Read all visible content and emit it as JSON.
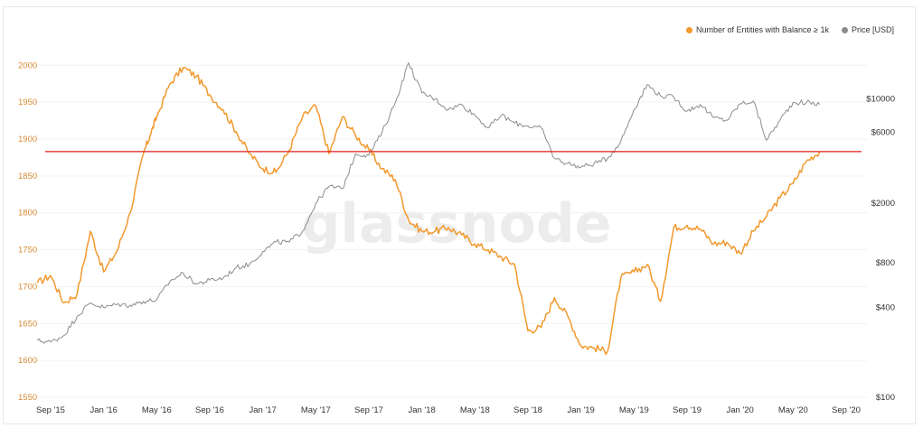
{
  "colors": {
    "entities": "#f2992e",
    "price": "#8c8c8c",
    "threshold": "#e01b1b",
    "left_axis_text": "#d98a35",
    "right_axis_text": "#333333",
    "watermark": "#e6e6e6"
  },
  "watermark": "glassnode",
  "legend": [
    {
      "label": "Number of Entities with Balance ≥ 1k",
      "color": "#f2992e"
    },
    {
      "label": "Price [USD]",
      "color": "#8c8c8c"
    }
  ],
  "chart_data": {
    "type": "line",
    "x_ticks": [
      "Sep '15",
      "Jan '16",
      "May '16",
      "Sep '16",
      "Jan '17",
      "May '17",
      "Sep '17",
      "Jan '18",
      "May '18",
      "Sep '18",
      "Jan '19",
      "May '19",
      "Sep '19",
      "Jan '20",
      "May '20",
      "Sep '20"
    ],
    "left_axis": {
      "ticks": [
        2000,
        1950,
        1900,
        1850,
        1800,
        1750,
        1700,
        1650,
        1600,
        1550
      ],
      "ylim": [
        1550,
        2015
      ]
    },
    "right_axis": {
      "scale": "log",
      "ticks": [
        "$10000",
        "$6000",
        "$2000",
        "$800",
        "$400",
        "$100"
      ],
      "ylim": [
        100,
        20000
      ]
    },
    "threshold_value": 1883,
    "series": [
      {
        "name": "Number of Entities with Balance ≥ 1k",
        "axis": "left",
        "points": [
          [
            "Aug '15",
            1705
          ],
          [
            "Sep '15",
            1715
          ],
          [
            "Oct '15",
            1678
          ],
          [
            "Nov '15",
            1690
          ],
          [
            "Dec '15",
            1775
          ],
          [
            "Jan '16",
            1720
          ],
          [
            "Feb '16",
            1748
          ],
          [
            "Mar '16",
            1800
          ],
          [
            "Apr '16",
            1880
          ],
          [
            "Apr '16",
            1905
          ],
          [
            "May '16",
            1930
          ],
          [
            "Jun '16",
            1975
          ],
          [
            "Jul '16",
            1997
          ],
          [
            "Aug '16",
            1985
          ],
          [
            "Sep '16",
            1960
          ],
          [
            "Oct '16",
            1940
          ],
          [
            "Nov '16",
            1910
          ],
          [
            "Dec '16",
            1880
          ],
          [
            "Jan '17",
            1860
          ],
          [
            "Feb '17",
            1855
          ],
          [
            "Mar '17",
            1885
          ],
          [
            "Apr '17",
            1930
          ],
          [
            "May '17",
            1945
          ],
          [
            "Jun '17",
            1880
          ],
          [
            "Jul '17",
            1930
          ],
          [
            "Aug '17",
            1905
          ],
          [
            "Sep '17",
            1885
          ],
          [
            "Oct '17",
            1860
          ],
          [
            "Nov '17",
            1845
          ],
          [
            "Dec '17",
            1790
          ],
          [
            "Jan '18",
            1775
          ],
          [
            "Feb '18",
            1775
          ],
          [
            "Mar '18",
            1780
          ],
          [
            "Apr '18",
            1770
          ],
          [
            "May '18",
            1758
          ],
          [
            "Jun '18",
            1750
          ],
          [
            "Jul '18",
            1740
          ],
          [
            "Aug '18",
            1730
          ],
          [
            "Sep '18",
            1640
          ],
          [
            "Oct '18",
            1645
          ],
          [
            "Nov '18",
            1685
          ],
          [
            "Dec '18",
            1660
          ],
          [
            "Jan '19",
            1620
          ],
          [
            "Feb '19",
            1617
          ],
          [
            "Mar '19",
            1612
          ],
          [
            "Apr '19",
            1712
          ],
          [
            "May '19",
            1720
          ],
          [
            "Jun '19",
            1730
          ],
          [
            "Jul '19",
            1680
          ],
          [
            "Aug '19",
            1780
          ],
          [
            "Sep '19",
            1783
          ],
          [
            "Oct '19",
            1778
          ],
          [
            "Nov '19",
            1758
          ],
          [
            "Dec '19",
            1760
          ],
          [
            "Jan '20",
            1745
          ],
          [
            "Feb '20",
            1775
          ],
          [
            "Mar '20",
            1795
          ],
          [
            "Apr '20",
            1820
          ],
          [
            "May '20",
            1840
          ],
          [
            "Jun '20",
            1870
          ],
          [
            "Jul '20",
            1883
          ]
        ]
      },
      {
        "name": "Price [USD]",
        "axis": "right",
        "points": [
          [
            "Aug '15",
            240
          ],
          [
            "Sep '15",
            235
          ],
          [
            "Oct '15",
            260
          ],
          [
            "Nov '15",
            350
          ],
          [
            "Dec '15",
            430
          ],
          [
            "Jan '16",
            400
          ],
          [
            "Feb '16",
            420
          ],
          [
            "Mar '16",
            415
          ],
          [
            "Apr '16",
            440
          ],
          [
            "May '16",
            450
          ],
          [
            "Jun '16",
            600
          ],
          [
            "Jul '16",
            680
          ],
          [
            "Aug '16",
            575
          ],
          [
            "Sep '16",
            610
          ],
          [
            "Oct '16",
            630
          ],
          [
            "Nov '16",
            740
          ],
          [
            "Dec '16",
            780
          ],
          [
            "Jan '17",
            950
          ],
          [
            "Feb '17",
            1100
          ],
          [
            "Mar '17",
            1100
          ],
          [
            "Apr '17",
            1300
          ],
          [
            "May '17",
            2000
          ],
          [
            "Jun '17",
            2600
          ],
          [
            "Jul '17",
            2500
          ],
          [
            "Aug '17",
            4300
          ],
          [
            "Sep '17",
            4200
          ],
          [
            "Oct '17",
            6000
          ],
          [
            "Nov '17",
            9500
          ],
          [
            "Dec '17",
            17500
          ],
          [
            "Jan '18",
            11000
          ],
          [
            "Feb '18",
            10000
          ],
          [
            "Mar '18",
            8500
          ],
          [
            "Apr '18",
            9200
          ],
          [
            "May '18",
            7800
          ],
          [
            "Jun '18",
            6400
          ],
          [
            "Jul '18",
            7800
          ],
          [
            "Aug '18",
            6900
          ],
          [
            "Sep '18",
            6600
          ],
          [
            "Oct '18",
            6400
          ],
          [
            "Nov '18",
            4000
          ],
          [
            "Dec '18",
            3700
          ],
          [
            "Jan '19",
            3500
          ],
          [
            "Feb '19",
            3700
          ],
          [
            "Mar '19",
            4000
          ],
          [
            "Apr '19",
            5200
          ],
          [
            "May '19",
            8500
          ],
          [
            "Jun '19",
            12500
          ],
          [
            "Jul '19",
            10500
          ],
          [
            "Aug '19",
            10300
          ],
          [
            "Sep '19",
            8300
          ],
          [
            "Oct '19",
            9200
          ],
          [
            "Nov '19",
            7500
          ],
          [
            "Dec '19",
            7200
          ],
          [
            "Jan '20",
            9300
          ],
          [
            "Feb '20",
            9700
          ],
          [
            "Mar '20",
            5300
          ],
          [
            "Apr '20",
            7200
          ],
          [
            "May '20",
            9500
          ],
          [
            "Jun '20",
            9500
          ],
          [
            "Jul '20",
            9200
          ]
        ]
      }
    ]
  }
}
